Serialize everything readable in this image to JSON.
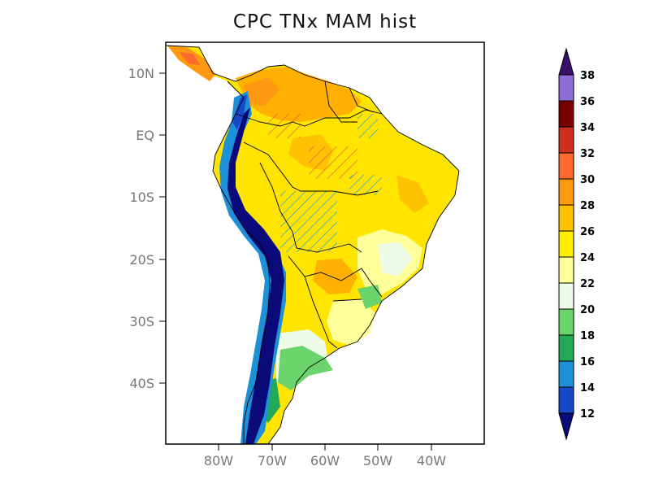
{
  "title": "CPC TNx MAM hist",
  "map": {
    "lat_labels": [
      "10N",
      "EQ",
      "10S",
      "20S",
      "30S",
      "40S"
    ],
    "lon_labels": [
      "80W",
      "70W",
      "60W",
      "50W",
      "40W"
    ],
    "extent": {
      "lon_min": -90,
      "lon_max": -30,
      "lat_min": -50,
      "lat_max": 15
    }
  },
  "colorbar": {
    "levels": [
      "12",
      "14",
      "16",
      "18",
      "20",
      "22",
      "24",
      "26",
      "28",
      "30",
      "32",
      "34",
      "36",
      "38"
    ],
    "colors": [
      "#0a0a7a",
      "#1648c8",
      "#1e90d8",
      "#22aa58",
      "#6cd46c",
      "#eefbe8",
      "#ffff99",
      "#ffee00",
      "#ffc200",
      "#ff9a10",
      "#ff6a2c",
      "#cc3020",
      "#7a0000",
      "#8f6cd6",
      "#3a0f6a"
    ]
  }
}
